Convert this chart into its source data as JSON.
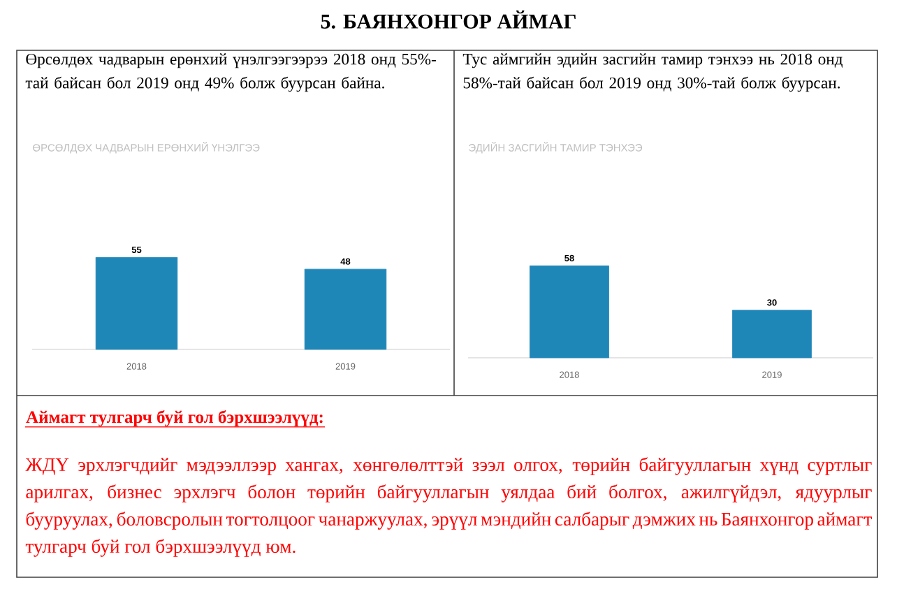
{
  "chart_data": [
    {
      "type": "other",
      "title": "5. БАЯНХОНГОР АЙМАГ"
    },
    {
      "type": "bar",
      "title": "ӨРСӨЛДӨХ ЧАДВАРЫН ЕРӨНХИЙ ҮНЭЛГЭЭ",
      "categories": [
        "2018",
        "2019"
      ],
      "values": [
        55,
        48
      ],
      "color": "#1f87b8",
      "data_labels": true,
      "annotations": [
        "Өрсөлдөх чадварын ерөнхий үнэлгээгээрээ 2018 онд 55%-тай байсан бол 2019 онд 49% болж буурсан байна."
      ]
    },
    {
      "type": "bar",
      "title": "ЭДИЙН ЗАСГИЙН ТАМИР ТЭНХЭЭ",
      "categories": [
        "2018",
        "2019"
      ],
      "values": [
        58,
        30
      ],
      "color": "#1f87b8",
      "data_labels": true,
      "annotations": [
        "Тус аймгийн эдийн засгийн тамир тэнхээ нь 2018 онд 58%-тай байсан бол 2019 онд 30%-тай болж буурсан."
      ]
    },
    {
      "type": "other",
      "title": "Аймагт тулгарч буй гол бэрхшээлүүд:",
      "annotations": [
        "ЖДҮ эрхлэгчдийг мэдээллээр хангах, хөнгөлөлттэй зээл олгох, төрийн байгууллагын хүнд суртлыг арилгах, бизнес эрхлэгч болон төрийн байгууллагын уялдаа бий болгох, ажилгүйдэл, ядуурлыг бууруулах, боловсролын тогтолцоог чанаржуулах, эрүүл мэндийн салбарыг дэмжих нь Баянхонгор аймагт тулгарч буй гол бэрхшээлүүд юм."
      ]
    }
  ]
}
